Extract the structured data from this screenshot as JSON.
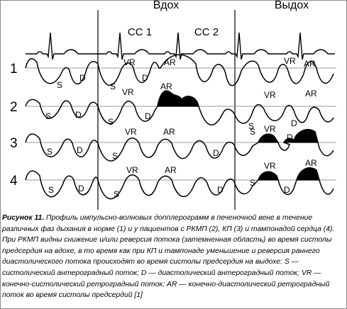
{
  "header": {
    "inhale": "Вдох",
    "exhale": "Выдох",
    "cc1": "СС 1",
    "cc2": "СС 2"
  },
  "rows": [
    {
      "number": "1",
      "labels": {
        "s1": "S",
        "d1": "D",
        "vr_in": "VR",
        "ar_in": "AR",
        "s2": "S",
        "d2": "D",
        "vr_out": "VR",
        "ar_out": "AR"
      }
    },
    {
      "number": "2",
      "labels": {
        "s1": "S",
        "d1": "D",
        "vr_in": "VR",
        "ar_in": "AR",
        "s2": "S",
        "d2": "D",
        "vr_out": "VR",
        "ar_out": "AR",
        "s3": "S",
        "d3": "D"
      }
    },
    {
      "number": "3",
      "labels": {
        "s1": "S",
        "d1": "D",
        "vr_in": "VR",
        "ar_in": "AR",
        "s2": "S",
        "d2": "D",
        "s3": "S",
        "vr_out": "VR",
        "d3": "D"
      }
    },
    {
      "number": "4",
      "labels": {
        "s1": "S",
        "d1": "D",
        "vr_in": "VR",
        "ar_in": "AR",
        "s2": "S",
        "d2": "D",
        "vr_out": "VR",
        "ar_out": "AR",
        "s3": "S",
        "d3": "D"
      }
    }
  ],
  "caption": {
    "title": "Рисунок 11.",
    "body": "Профиль импульсно-волновых допплерограмм в печеночной вене в течение различных фаз дыхания в норме (1) и у пациентов с РКМП (2), КП (3) и тампонадой сердца (4). При РКМП видны снижение и/или реверсия потока (затемненная область) во время систолы предсердия на вдохе, в то время как при КП и тампонаде уменьшение и реверсия раннего диастолического потока происходят во время систолы предсердия на выдохе: S — систолический антероградный поток; D — диастолический антероградный поток; VR — конечно-систолический ретроградный поток; AR — конечно-диастолический ретроградный поток во время систолы предсердий [1]"
  }
}
